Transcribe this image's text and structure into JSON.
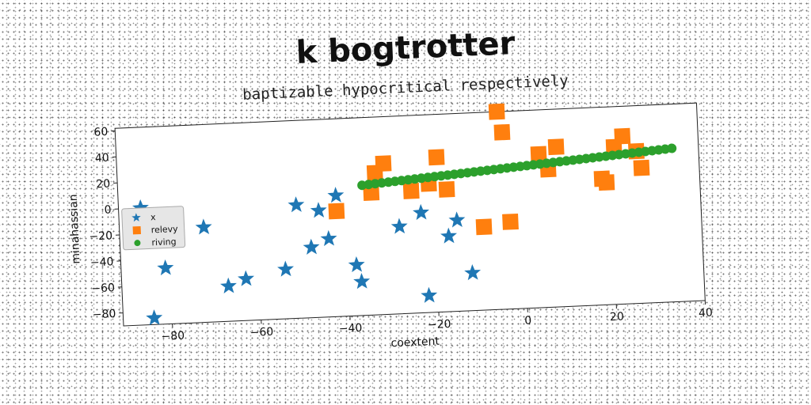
{
  "chart_data": {
    "type": "scatter",
    "title": "k bogtrotter",
    "subtitle": "baptizable hypocritical respectively",
    "xlabel": "coextent",
    "ylabel": "minahassian",
    "xlim": [
      -91,
      40
    ],
    "ylim": [
      -90,
      62
    ],
    "xticks": [
      -80,
      -60,
      -40,
      -20,
      0,
      20,
      40
    ],
    "yticks": [
      60,
      40,
      20,
      0,
      -20,
      -40,
      -60,
      -80
    ],
    "xtick_labels": [
      "−80",
      "−60",
      "−40",
      "−20",
      "0",
      "20",
      "40"
    ],
    "ytick_labels": [
      "60",
      "40",
      "20",
      "0",
      "−20",
      "−40",
      "−60",
      "−80"
    ],
    "grid": false,
    "legend_position": "center-left",
    "series": [
      {
        "name": "x",
        "marker": "star",
        "color": "#1f77b4",
        "points": [
          [
            -86,
            0
          ],
          [
            -81,
            -47
          ],
          [
            -84,
            -85
          ],
          [
            -72,
            -17
          ],
          [
            -67,
            -63
          ],
          [
            -63,
            -58
          ],
          [
            -54,
            -52
          ],
          [
            -51,
            -3
          ],
          [
            -48,
            -36
          ],
          [
            -46,
            -8
          ],
          [
            -44,
            -30
          ],
          [
            -42,
            3
          ],
          [
            -38,
            -51
          ],
          [
            -37,
            -64
          ],
          [
            -28,
            -23
          ],
          [
            -23,
            -13
          ],
          [
            -22,
            -77
          ],
          [
            -17,
            -32
          ],
          [
            -15,
            -20
          ],
          [
            -12,
            -61
          ]
        ]
      },
      {
        "name": "relevy",
        "marker": "square",
        "color": "#ff7f0e",
        "points": [
          [
            -42,
            -9
          ],
          [
            -34,
            4
          ],
          [
            -33,
            19
          ],
          [
            -31,
            26
          ],
          [
            -25,
            4
          ],
          [
            -21,
            9
          ],
          [
            -19,
            29
          ],
          [
            -17,
            4
          ],
          [
            -9,
            -26
          ],
          [
            -5,
            62
          ],
          [
            -3,
            -23
          ],
          [
            -4,
            46
          ],
          [
            4,
            28
          ],
          [
            6,
            16
          ],
          [
            8,
            33
          ],
          [
            18,
            7
          ],
          [
            19,
            4
          ],
          [
            21,
            31
          ],
          [
            23,
            39
          ],
          [
            26,
            27
          ],
          [
            27,
            14
          ]
        ]
      },
      {
        "name": "riving",
        "marker": "circle",
        "color": "#2ca02c",
        "line": {
          "x_start": -36,
          "y_start": 10,
          "x_end": 34,
          "y_end": 28,
          "count": 48
        }
      }
    ]
  }
}
